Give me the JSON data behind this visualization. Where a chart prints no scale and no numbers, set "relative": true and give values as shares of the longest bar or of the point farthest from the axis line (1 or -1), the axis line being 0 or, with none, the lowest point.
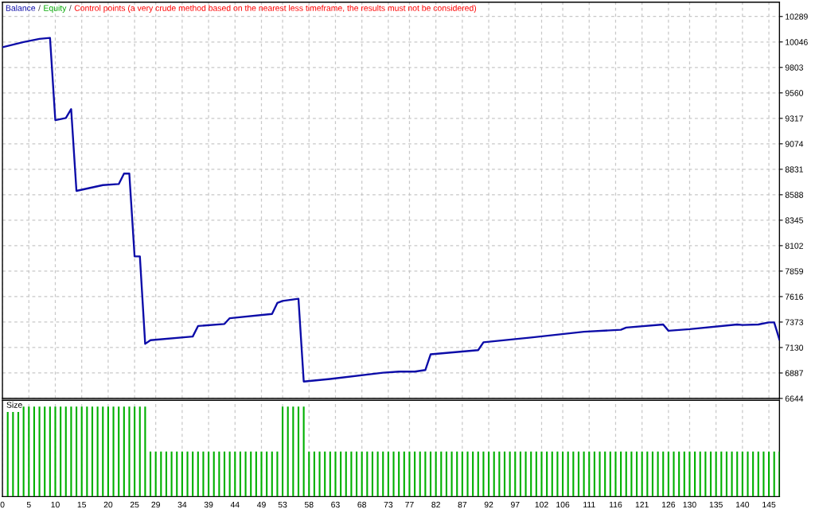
{
  "chart_data": [
    {
      "type": "line",
      "legend": "top left",
      "annotations": [
        "/",
        "/"
      ],
      "grid": true,
      "tick_labels": "y",
      "xlim": [
        0,
        147
      ],
      "xticks": [
        0,
        5,
        10,
        15,
        20,
        25,
        29,
        34,
        39,
        44,
        49,
        53,
        58,
        63,
        68,
        73,
        77,
        82,
        87,
        92,
        97,
        102,
        106,
        111,
        116,
        121,
        126,
        130,
        135,
        140,
        145
      ],
      "ylim": [
        6644,
        10426
      ],
      "yticks": [
        6644,
        6887,
        7130,
        7373,
        7616,
        7859,
        8102,
        8345,
        8588,
        8831,
        9074,
        9317,
        9560,
        9803,
        10046,
        10289
      ],
      "series": [
        {
          "name": "Balance",
          "color": "#0c0ca8",
          "x": [
            0,
            4,
            7,
            9,
            10,
            12,
            13,
            14,
            19,
            22,
            23,
            24,
            25,
            26,
            27,
            28,
            36,
            37,
            42,
            43,
            51,
            52,
            53,
            56,
            57,
            62,
            72,
            75,
            78,
            80,
            81,
            90,
            91,
            100,
            110,
            117,
            118,
            125,
            126,
            130,
            139,
            140,
            143,
            145,
            146,
            147
          ],
          "values": [
            9995,
            10045,
            10075,
            10085,
            9300,
            9320,
            9405,
            8625,
            8680,
            8690,
            8790,
            8790,
            8000,
            8000,
            7165,
            7200,
            7235,
            7335,
            7355,
            7410,
            7450,
            7555,
            7575,
            7595,
            6805,
            6830,
            6890,
            6900,
            6900,
            6915,
            7065,
            7105,
            7180,
            7225,
            7280,
            7300,
            7320,
            7350,
            7290,
            7305,
            7350,
            7345,
            7350,
            7370,
            7370,
            7205
          ]
        },
        {
          "name": "Equity",
          "color": "#00a800"
        },
        {
          "name": "Control points (a very crude method based on the nearest less timeframe, the results must not be considered)",
          "color": "#ff0000"
        }
      ]
    },
    {
      "type": "bar",
      "title": "Size",
      "relative": true,
      "grid": "x",
      "tick_labels": "x",
      "color": "#00b000",
      "xlim": [
        0,
        147
      ],
      "xticks": [
        0,
        5,
        10,
        15,
        20,
        25,
        29,
        34,
        39,
        44,
        49,
        53,
        58,
        63,
        68,
        73,
        77,
        82,
        87,
        92,
        97,
        102,
        106,
        111,
        116,
        121,
        126,
        130,
        135,
        140,
        145
      ],
      "x": [
        1,
        2,
        3,
        4,
        5,
        6,
        7,
        8,
        9,
        10,
        11,
        12,
        13,
        14,
        15,
        16,
        17,
        18,
        19,
        20,
        21,
        22,
        23,
        24,
        25,
        26,
        27,
        28,
        29,
        30,
        31,
        32,
        33,
        34,
        35,
        36,
        37,
        38,
        39,
        40,
        41,
        42,
        43,
        44,
        45,
        46,
        47,
        48,
        49,
        50,
        51,
        52,
        53,
        54,
        55,
        56,
        57,
        58,
        59,
        60,
        61,
        62,
        63,
        64,
        65,
        66,
        67,
        68,
        69,
        70,
        71,
        72,
        73,
        74,
        75,
        76,
        77,
        78,
        79,
        80,
        81,
        82,
        83,
        84,
        85,
        86,
        87,
        88,
        89,
        90,
        91,
        92,
        93,
        94,
        95,
        96,
        97,
        98,
        99,
        100,
        101,
        102,
        103,
        104,
        105,
        106,
        107,
        108,
        109,
        110,
        111,
        112,
        113,
        114,
        115,
        116,
        117,
        118,
        119,
        120,
        121,
        122,
        123,
        124,
        125,
        126,
        127,
        128,
        129,
        130,
        131,
        132,
        133,
        134,
        135,
        136,
        137,
        138,
        139,
        140,
        141,
        142,
        143,
        144,
        145,
        146,
        147
      ],
      "values": [
        0.94,
        0.94,
        0.94,
        1,
        1,
        1,
        1,
        1,
        1,
        1,
        1,
        1,
        1,
        1,
        1,
        1,
        1,
        1,
        1,
        1,
        1,
        1,
        1,
        1,
        1,
        1,
        1,
        0.5,
        0.5,
        0.5,
        0.5,
        0.5,
        0.5,
        0.5,
        0.5,
        0.5,
        0.5,
        0.5,
        0.5,
        0.5,
        0.5,
        0.5,
        0.5,
        0.5,
        0.5,
        0.5,
        0.5,
        0.5,
        0.5,
        0.5,
        0.5,
        0.5,
        1,
        1,
        1,
        1,
        1,
        0.5,
        0.5,
        0.5,
        0.5,
        0.5,
        0.5,
        0.5,
        0.5,
        0.5,
        0.5,
        0.5,
        0.5,
        0.5,
        0.5,
        0.5,
        0.5,
        0.5,
        0.5,
        0.5,
        0.5,
        0.5,
        0.5,
        0.5,
        0.5,
        0.5,
        0.5,
        0.5,
        0.5,
        0.5,
        0.5,
        0.5,
        0.5,
        0.5,
        0.5,
        0.5,
        0.5,
        0.5,
        0.5,
        0.5,
        0.5,
        0.5,
        0.5,
        0.5,
        0.5,
        0.5,
        0.5,
        0.5,
        0.5,
        0.5,
        0.5,
        0.5,
        0.5,
        0.5,
        0.5,
        0.5,
        0.5,
        0.5,
        0.5,
        0.5,
        0.5,
        0.5,
        0.5,
        0.5,
        0.5,
        0.5,
        0.5,
        0.5,
        0.5,
        0.5,
        0.5,
        0.5,
        0.5,
        0.5,
        0.5,
        0.5,
        0.5,
        0.5,
        0.5,
        0.5,
        0.5,
        0.5,
        0.5,
        0.5,
        0.5,
        0.5,
        0.5,
        0.5,
        0.5,
        0.5,
        0.5
      ]
    }
  ]
}
